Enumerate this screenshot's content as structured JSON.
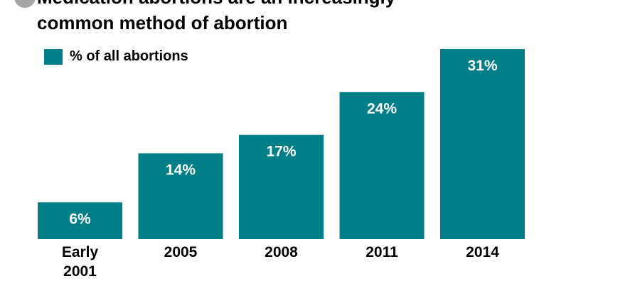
{
  "header": {
    "title_line1": "Medication abortions are an increasingly",
    "title_line2": "common method of abortion"
  },
  "colors": {
    "bar": "#007f89",
    "header_icon": "#a5a5a5"
  },
  "chart_data": {
    "type": "bar",
    "title": "Medication abortions are an increasingly common method of abortion",
    "categories": [
      "Early 2001",
      "2005",
      "2008",
      "2011",
      "2014"
    ],
    "category_lines": [
      [
        "Early",
        "2001"
      ],
      [
        "2005"
      ],
      [
        "2008"
      ],
      [
        "2011"
      ],
      [
        "2014"
      ]
    ],
    "series": [
      {
        "name": "% of all abortions",
        "values": [
          6,
          14,
          17,
          24,
          31
        ],
        "labels": [
          "6%",
          "14%",
          "17%",
          "24%",
          "31%"
        ]
      }
    ],
    "ylim": [
      0,
      31
    ],
    "grid": false,
    "legend_position": "top-left"
  }
}
